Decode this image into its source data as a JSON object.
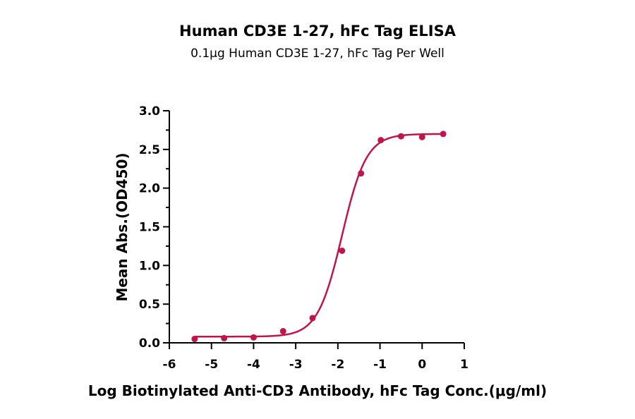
{
  "chart_data": {
    "type": "scatter",
    "title": "Human CD3E 1-27, hFc Tag ELISA",
    "subtitle": "0.1μg Human CD3E 1-27, hFc Tag Per Well",
    "xlabel": "Log Biotinylated Anti-CD3 Antibody, hFc Tag Conc.(μg/ml)",
    "ylabel": "Mean Abs.(OD450)",
    "xlim": [
      -6,
      1
    ],
    "ylim": [
      0,
      3.0
    ],
    "x_ticks": [
      "-6",
      "-5",
      "-4",
      "-3",
      "-2",
      "-1",
      "0",
      "1"
    ],
    "y_ticks": [
      "0.0",
      "0.5",
      "1.0",
      "1.5",
      "2.0",
      "2.5",
      "3.0"
    ],
    "grid": false,
    "color": "#c0154a",
    "points": [
      {
        "x": -5.4,
        "y": 0.05
      },
      {
        "x": -4.7,
        "y": 0.06
      },
      {
        "x": -4.0,
        "y": 0.07
      },
      {
        "x": -3.3,
        "y": 0.15
      },
      {
        "x": -2.6,
        "y": 0.32
      },
      {
        "x": -1.9,
        "y": 1.19
      },
      {
        "x": -1.45,
        "y": 2.19
      },
      {
        "x": -0.98,
        "y": 2.62
      },
      {
        "x": -0.5,
        "y": 2.67
      },
      {
        "x": 0.0,
        "y": 2.66
      },
      {
        "x": 0.5,
        "y": 2.7
      }
    ],
    "fit": {
      "bottom": 0.08,
      "top": 2.7,
      "log_ec50": -1.9,
      "hill": 1.5
    }
  }
}
